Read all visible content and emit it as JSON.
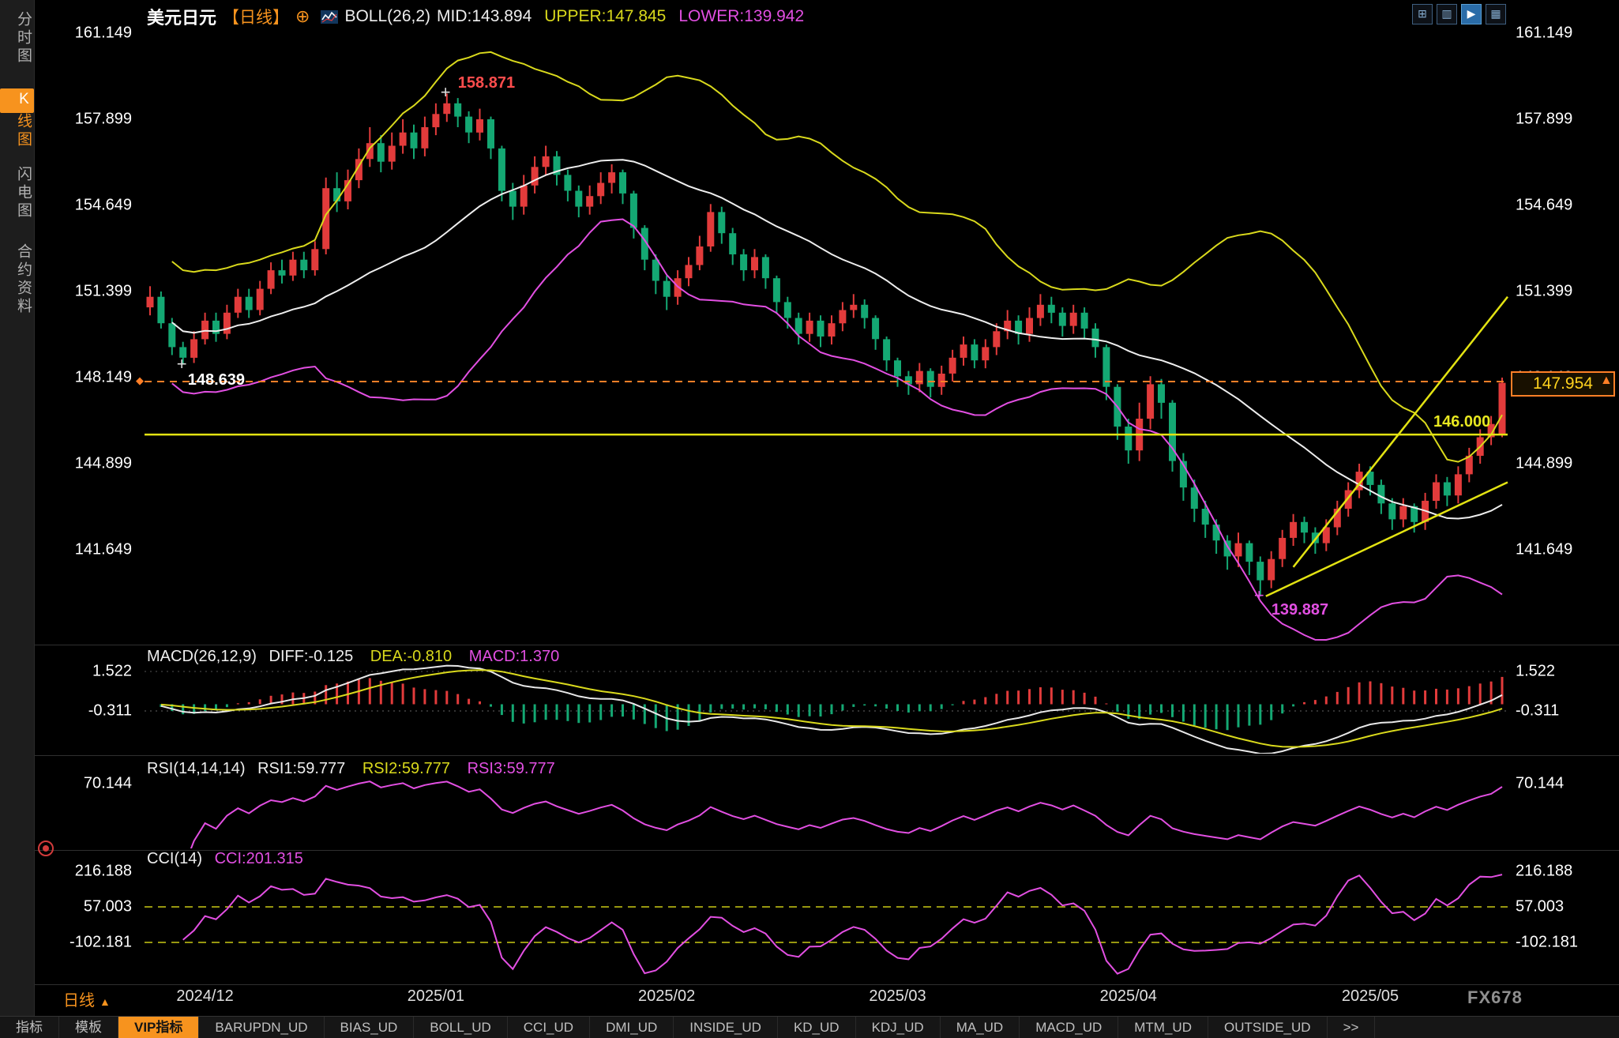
{
  "header": {
    "symbol": "美元日元",
    "period": "【日线】",
    "boll": "BOLL(26,2)",
    "mid": "MID:143.894",
    "upper": "UPPER:147.845",
    "lower": "LOWER:139.942"
  },
  "sidebar": {
    "items": [
      {
        "label": "分时图",
        "selected": false
      },
      {
        "label": "K线图",
        "selected": true
      },
      {
        "label": "闪电图",
        "selected": false
      },
      {
        "label": "合约资料",
        "selected": false
      }
    ]
  },
  "top_icons": [
    {
      "name": "layout-grid-icon",
      "glyph": "⊞",
      "active": false
    },
    {
      "name": "layout-panes-icon",
      "glyph": "▥",
      "active": false
    },
    {
      "name": "play-icon",
      "glyph": "▶",
      "active": true
    },
    {
      "name": "layout-windows-icon",
      "glyph": "▦",
      "active": false
    }
  ],
  "panels": {
    "macd": {
      "title": "MACD(26,12,9)",
      "diff": "DIFF:-0.125",
      "dea": "DEA:-0.810",
      "macd": "MACD:1.370"
    },
    "rsi": {
      "title": "RSI(14,14,14)",
      "rsi1": "RSI1:59.777",
      "rsi2": "RSI2:59.777",
      "rsi3": "RSI3:59.777"
    },
    "cci": {
      "title": "CCI(14)",
      "cci": "CCI:201.315"
    }
  },
  "price_tag": {
    "label": "147.954"
  },
  "x_axis": {
    "period": "日线",
    "months": [
      {
        "label": "2024/12",
        "bar": 5
      },
      {
        "label": "2025/01",
        "bar": 26
      },
      {
        "label": "2025/02",
        "bar": 47
      },
      {
        "label": "2025/03",
        "bar": 68
      },
      {
        "label": "2025/04",
        "bar": 89
      },
      {
        "label": "2025/05",
        "bar": 111
      }
    ]
  },
  "watermark": "FX678",
  "toolbar": {
    "tabs": [
      {
        "label": "指标",
        "highlight": false
      },
      {
        "label": "模板",
        "highlight": false
      },
      {
        "label": "VIP指标",
        "highlight": true
      },
      {
        "label": "BARUPDN_UD",
        "highlight": false
      },
      {
        "label": "BIAS_UD",
        "highlight": false
      },
      {
        "label": "BOLL_UD",
        "highlight": false
      },
      {
        "label": "CCI_UD",
        "highlight": false
      },
      {
        "label": "DMI_UD",
        "highlight": false
      },
      {
        "label": "INSIDE_UD",
        "highlight": false
      },
      {
        "label": "KD_UD",
        "highlight": false
      },
      {
        "label": "KDJ_UD",
        "highlight": false
      },
      {
        "label": "MA_UD",
        "highlight": false
      },
      {
        "label": "MACD_UD",
        "highlight": false
      },
      {
        "label": "MTM_UD",
        "highlight": false
      },
      {
        "label": "OUTSIDE_UD",
        "highlight": false
      },
      {
        "label": ">>",
        "highlight": false
      }
    ]
  },
  "colors": {
    "up": "#e23b3b",
    "down": "#14a873",
    "boll_upper": "#d9d91c",
    "boll_mid": "#eeeeee",
    "boll_lower": "#e24fe2",
    "trend": "#e3e312",
    "alert": "#ff7f27",
    "accent": "#f7931e"
  },
  "chart_data": {
    "type": "candlestick",
    "title": "美元日元 日线 (USD/JPY Daily)",
    "y_axis_ticks": [
      161.149,
      157.899,
      154.649,
      151.399,
      148.149,
      144.899,
      141.649
    ],
    "x_axis_labels": [
      "2024/12",
      "2025/01",
      "2025/02",
      "2025/03",
      "2025/04",
      "2025/05"
    ],
    "indicators": {
      "boll": {
        "period": 26,
        "dev": 2,
        "mid": 143.894,
        "upper": 147.845,
        "lower": 139.942
      },
      "macd": {
        "params": [
          26,
          12,
          9
        ],
        "diff": -0.125,
        "dea": -0.81,
        "macd": 1.37,
        "axis_ticks": [
          1.522,
          -0.311
        ]
      },
      "rsi": {
        "params": [
          14,
          14,
          14
        ],
        "rsi1": 59.777,
        "rsi2": 59.777,
        "rsi3": 59.777,
        "axis_ticks": [
          70.144
        ]
      },
      "cci": {
        "params": [
          14
        ],
        "cci": 201.315,
        "axis_ticks": [
          216.188,
          57.003,
          -102.181
        ]
      }
    },
    "levels": {
      "alert_dashed": 148.0,
      "horizontal_line": 146.0,
      "last_price": 147.954
    },
    "trendlines": [
      {
        "bar1": 104,
        "price1": 141.0,
        "bar2": 123.5,
        "price2": 151.2
      },
      {
        "bar1": 101.5,
        "price1": 139.9,
        "bar2": 123.5,
        "price2": 144.2
      }
    ],
    "annotations": [
      {
        "id": "high",
        "text": "158.871",
        "bar": 27,
        "price": 158.871,
        "color": "#ff4d4d"
      },
      {
        "id": "dec_low",
        "text": "148.639",
        "bar": 3,
        "price": 148.639,
        "color": "#ffffff"
      },
      {
        "id": "apr_low",
        "text": "139.887",
        "bar": 101,
        "price": 139.887,
        "color": "#e24fe2"
      },
      {
        "id": "hline",
        "text": "146.000",
        "price": 146.0,
        "color": "#e8e820"
      }
    ],
    "ohlc": [
      [
        150.8,
        151.6,
        150.5,
        151.2
      ],
      [
        151.2,
        151.4,
        150.0,
        150.2
      ],
      [
        150.2,
        150.4,
        149.0,
        149.3
      ],
      [
        149.3,
        149.5,
        148.64,
        148.9
      ],
      [
        148.9,
        149.9,
        148.7,
        149.6
      ],
      [
        149.6,
        150.6,
        149.4,
        150.3
      ],
      [
        150.3,
        150.6,
        149.5,
        149.8
      ],
      [
        149.8,
        150.9,
        149.6,
        150.6
      ],
      [
        150.6,
        151.5,
        150.4,
        151.2
      ],
      [
        151.2,
        151.5,
        150.4,
        150.7
      ],
      [
        150.7,
        151.8,
        150.5,
        151.5
      ],
      [
        151.5,
        152.5,
        151.3,
        152.2
      ],
      [
        152.2,
        152.6,
        151.7,
        152.0
      ],
      [
        152.0,
        152.9,
        151.8,
        152.6
      ],
      [
        152.6,
        152.9,
        151.9,
        152.2
      ],
      [
        152.2,
        153.3,
        152.0,
        153.0
      ],
      [
        153.0,
        155.7,
        152.8,
        155.3
      ],
      [
        155.3,
        155.9,
        154.4,
        154.8
      ],
      [
        154.8,
        156.0,
        154.5,
        155.6
      ],
      [
        155.6,
        156.8,
        155.3,
        156.4
      ],
      [
        156.4,
        157.6,
        156.1,
        157.0
      ],
      [
        157.0,
        157.3,
        155.9,
        156.3
      ],
      [
        156.3,
        157.4,
        156.0,
        156.9
      ],
      [
        156.9,
        157.9,
        156.6,
        157.4
      ],
      [
        157.4,
        157.7,
        156.4,
        156.8
      ],
      [
        156.8,
        158.0,
        156.5,
        157.6
      ],
      [
        157.6,
        158.5,
        157.3,
        158.1
      ],
      [
        158.1,
        158.871,
        157.8,
        158.5
      ],
      [
        158.5,
        158.7,
        157.6,
        158.0
      ],
      [
        158.0,
        158.2,
        157.0,
        157.4
      ],
      [
        157.4,
        158.3,
        157.1,
        157.9
      ],
      [
        157.9,
        158.0,
        156.4,
        156.8
      ],
      [
        156.8,
        156.9,
        154.8,
        155.2
      ],
      [
        155.2,
        155.5,
        154.1,
        154.6
      ],
      [
        154.6,
        155.8,
        154.3,
        155.4
      ],
      [
        155.4,
        156.5,
        155.1,
        156.1
      ],
      [
        156.1,
        156.9,
        155.8,
        156.5
      ],
      [
        156.5,
        156.7,
        155.4,
        155.8
      ],
      [
        155.8,
        156.0,
        154.8,
        155.2
      ],
      [
        155.2,
        155.4,
        154.2,
        154.6
      ],
      [
        154.6,
        155.4,
        154.3,
        155.0
      ],
      [
        155.0,
        155.9,
        154.7,
        155.5
      ],
      [
        155.5,
        156.2,
        155.1,
        155.9
      ],
      [
        155.9,
        156.0,
        154.7,
        155.1
      ],
      [
        155.1,
        155.2,
        153.4,
        153.8
      ],
      [
        153.8,
        153.9,
        152.2,
        152.6
      ],
      [
        152.6,
        152.8,
        151.3,
        151.8
      ],
      [
        151.8,
        152.0,
        150.7,
        151.2
      ],
      [
        151.2,
        152.2,
        150.9,
        151.9
      ],
      [
        151.9,
        152.7,
        151.6,
        152.4
      ],
      [
        152.4,
        153.5,
        152.2,
        153.1
      ],
      [
        153.1,
        154.7,
        152.9,
        154.4
      ],
      [
        154.4,
        154.6,
        153.2,
        153.6
      ],
      [
        153.6,
        153.8,
        152.4,
        152.8
      ],
      [
        152.8,
        153.0,
        151.8,
        152.2
      ],
      [
        152.2,
        153.0,
        151.9,
        152.7
      ],
      [
        152.7,
        152.8,
        151.5,
        151.9
      ],
      [
        151.9,
        152.0,
        150.6,
        151.0
      ],
      [
        151.0,
        151.2,
        150.0,
        150.4
      ],
      [
        150.4,
        150.6,
        149.4,
        149.8
      ],
      [
        149.8,
        150.6,
        149.5,
        150.3
      ],
      [
        150.3,
        150.5,
        149.3,
        149.7
      ],
      [
        149.7,
        150.5,
        149.4,
        150.2
      ],
      [
        150.2,
        151.0,
        149.9,
        150.7
      ],
      [
        150.7,
        151.3,
        150.4,
        150.9
      ],
      [
        150.9,
        151.1,
        150.0,
        150.4
      ],
      [
        150.4,
        150.5,
        149.2,
        149.6
      ],
      [
        149.6,
        149.7,
        148.4,
        148.8
      ],
      [
        148.8,
        148.9,
        147.8,
        148.2
      ],
      [
        148.2,
        148.4,
        147.5,
        147.9
      ],
      [
        147.9,
        148.7,
        147.6,
        148.4
      ],
      [
        148.4,
        148.5,
        147.4,
        147.8
      ],
      [
        147.8,
        148.6,
        147.5,
        148.3
      ],
      [
        148.3,
        149.2,
        148.0,
        148.9
      ],
      [
        148.9,
        149.7,
        148.6,
        149.4
      ],
      [
        149.4,
        149.6,
        148.5,
        148.8
      ],
      [
        148.8,
        149.6,
        148.5,
        149.3
      ],
      [
        149.3,
        150.2,
        149.0,
        149.9
      ],
      [
        149.9,
        150.7,
        149.6,
        150.3
      ],
      [
        150.3,
        150.5,
        149.4,
        149.8
      ],
      [
        149.8,
        150.8,
        149.5,
        150.4
      ],
      [
        150.4,
        151.3,
        150.1,
        150.9
      ],
      [
        150.9,
        151.2,
        150.2,
        150.6
      ],
      [
        150.6,
        150.8,
        149.7,
        150.1
      ],
      [
        150.1,
        150.9,
        149.8,
        150.6
      ],
      [
        150.6,
        150.8,
        149.6,
        150.0
      ],
      [
        150.0,
        150.2,
        148.9,
        149.3
      ],
      [
        149.3,
        149.4,
        147.3,
        147.8
      ],
      [
        147.8,
        147.9,
        145.8,
        146.3
      ],
      [
        146.3,
        146.6,
        144.9,
        145.4
      ],
      [
        145.4,
        147.2,
        145.0,
        146.6
      ],
      [
        146.6,
        148.2,
        146.2,
        147.9
      ],
      [
        147.9,
        148.1,
        146.6,
        147.2
      ],
      [
        147.2,
        147.3,
        144.6,
        145.0
      ],
      [
        145.0,
        145.3,
        143.5,
        144.0
      ],
      [
        144.0,
        144.3,
        142.7,
        143.2
      ],
      [
        143.2,
        143.5,
        142.1,
        142.6
      ],
      [
        142.6,
        142.8,
        141.5,
        142.0
      ],
      [
        142.0,
        142.2,
        140.9,
        141.4
      ],
      [
        141.4,
        142.3,
        141.0,
        141.9
      ],
      [
        141.9,
        142.0,
        140.7,
        141.2
      ],
      [
        141.2,
        141.4,
        139.887,
        140.5
      ],
      [
        140.5,
        141.6,
        140.2,
        141.3
      ],
      [
        141.3,
        142.4,
        141.0,
        142.1
      ],
      [
        142.1,
        143.0,
        141.8,
        142.7
      ],
      [
        142.7,
        142.9,
        141.9,
        142.3
      ],
      [
        142.3,
        142.5,
        141.5,
        141.9
      ],
      [
        141.9,
        142.8,
        141.6,
        142.5
      ],
      [
        142.5,
        143.5,
        142.2,
        143.2
      ],
      [
        143.2,
        144.2,
        142.9,
        143.9
      ],
      [
        143.9,
        144.9,
        143.6,
        144.6
      ],
      [
        144.6,
        144.8,
        143.7,
        144.1
      ],
      [
        144.1,
        144.3,
        143.0,
        143.4
      ],
      [
        143.4,
        143.6,
        142.4,
        142.8
      ],
      [
        142.8,
        143.6,
        142.5,
        143.3
      ],
      [
        143.3,
        143.4,
        142.3,
        142.7
      ],
      [
        142.7,
        143.8,
        142.4,
        143.5
      ],
      [
        143.5,
        144.5,
        143.2,
        144.2
      ],
      [
        144.2,
        144.4,
        143.3,
        143.7
      ],
      [
        143.7,
        144.8,
        143.4,
        144.5
      ],
      [
        144.5,
        145.5,
        144.2,
        145.2
      ],
      [
        145.2,
        146.2,
        144.9,
        145.9
      ],
      [
        145.9,
        146.7,
        145.6,
        146.4
      ],
      [
        146.0,
        148.15,
        145.9,
        147.954
      ]
    ]
  }
}
